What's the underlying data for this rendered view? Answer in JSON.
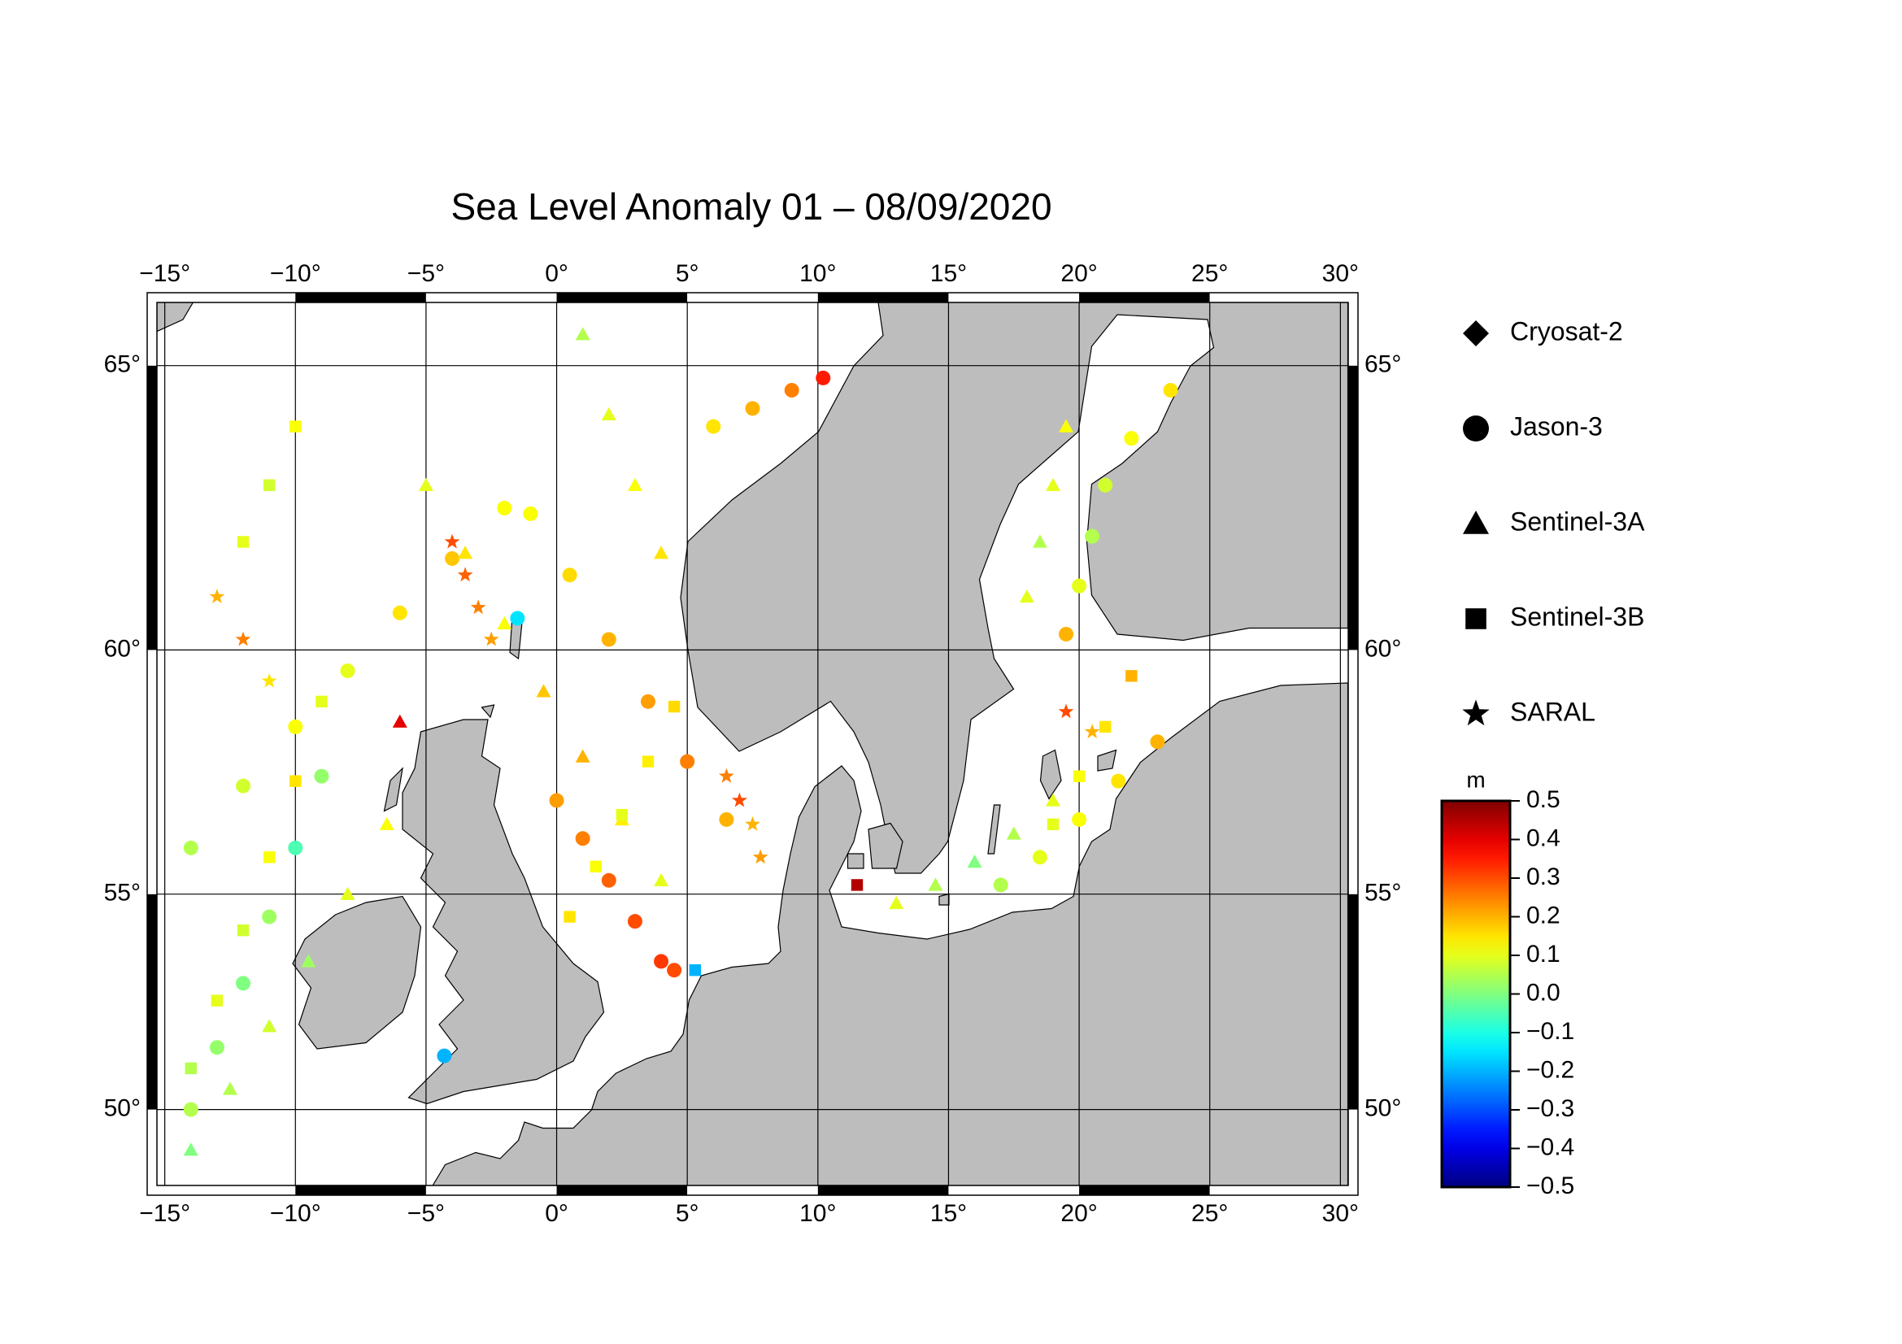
{
  "chart_data": {
    "type": "map",
    "title": "Sea Level Anomaly 01 – 08/09/2020",
    "xlim": [
      -15.3,
      30.3
    ],
    "ylim": [
      48.1,
      66
    ],
    "projection": "mercator",
    "grid": true,
    "xticks": [
      {
        "value": -15,
        "label": "−15°"
      },
      {
        "value": -10,
        "label": "−10°"
      },
      {
        "value": -5,
        "label": "−5°"
      },
      {
        "value": 0,
        "label": "0°"
      },
      {
        "value": 5,
        "label": "5°"
      },
      {
        "value": 10,
        "label": "10°"
      },
      {
        "value": 15,
        "label": "15°"
      },
      {
        "value": 20,
        "label": "20°"
      },
      {
        "value": 25,
        "label": "25°"
      },
      {
        "value": 30,
        "label": "30°"
      }
    ],
    "yticks": [
      {
        "value": 50,
        "label": "50°"
      },
      {
        "value": 55,
        "label": "55°"
      },
      {
        "value": 60,
        "label": "60°"
      },
      {
        "value": 65,
        "label": "65°"
      }
    ],
    "colormap": "jet",
    "colorbar": {
      "label": "m",
      "lim": [
        -0.5,
        0.5
      ],
      "ticks": [
        {
          "value": -0.5,
          "label": "−0.5"
        },
        {
          "value": -0.4,
          "label": "−0.4"
        },
        {
          "value": -0.3,
          "label": "−0.3"
        },
        {
          "value": -0.2,
          "label": "−0.2"
        },
        {
          "value": -0.1,
          "label": "−0.1"
        },
        {
          "value": 0,
          "label": "0.0"
        },
        0.1,
        0.2,
        0.3,
        0.4,
        0.5
      ]
    },
    "series": [
      {
        "name": "Cryosat-2",
        "marker": "diamond",
        "x": [],
        "y": [],
        "values": []
      },
      {
        "name": "Jason-3",
        "marker": "circle",
        "x": [
          -14,
          -12,
          -10,
          -8,
          -6,
          -4,
          -2,
          -1,
          0.5,
          2,
          3.5,
          5,
          6.5,
          0,
          1,
          2,
          3,
          4,
          17,
          18.5,
          20,
          21.5,
          23,
          19.5,
          20,
          20.5,
          21,
          22,
          23.5,
          6,
          7.5,
          9,
          10.2,
          -14,
          -13,
          -12,
          -11,
          -10,
          -9,
          -4.3,
          -1.5,
          4.5
        ],
        "y": [
          56,
          57.3,
          58.5,
          59.6,
          60.7,
          61.7,
          62.6,
          62.5,
          61.4,
          60.2,
          59,
          57.8,
          56.6,
          57,
          56.2,
          55.3,
          54.4,
          53.5,
          55.2,
          55.8,
          56.6,
          57.4,
          58.2,
          60.3,
          61.2,
          62.1,
          63,
          63.8,
          64.6,
          64,
          64.3,
          64.6,
          64.8,
          50,
          51.5,
          53,
          54.5,
          56,
          57.5,
          51.3,
          60.6,
          53.3
        ],
        "values": [
          0.05,
          0.08,
          0.12,
          0.1,
          0.15,
          0.18,
          0.12,
          0.12,
          0.16,
          0.2,
          0.22,
          0.25,
          0.2,
          0.22,
          0.25,
          0.28,
          0.3,
          0.32,
          0.05,
          0.1,
          0.12,
          0.15,
          0.2,
          0.2,
          0.1,
          0.05,
          0.08,
          0.12,
          0.15,
          0.15,
          0.2,
          0.25,
          0.35,
          0.05,
          0.02,
          0,
          0.03,
          -0.05,
          0.02,
          -0.2,
          -0.15,
          0.3
        ]
      },
      {
        "name": "Sentinel-3A",
        "marker": "triangle",
        "x": [
          -5,
          -3.5,
          -2,
          -0.5,
          1,
          2.5,
          4,
          -14,
          -12.5,
          -11,
          -9.5,
          -8,
          -6.5,
          1,
          2,
          3,
          4,
          18,
          18.5,
          19,
          19.5,
          13,
          14.5,
          16,
          17.5,
          19,
          -6
        ],
        "y": [
          63,
          61.8,
          60.5,
          59.2,
          57.9,
          56.6,
          55.3,
          49,
          50.5,
          52,
          53.5,
          55,
          56.5,
          65.5,
          64.2,
          63,
          61.8,
          61,
          62,
          63,
          64,
          54.8,
          55.2,
          55.7,
          56.3,
          57,
          58.6
        ],
        "values": [
          0.1,
          0.15,
          0.12,
          0.18,
          0.2,
          0.14,
          0.1,
          0,
          0.05,
          0.08,
          0.03,
          0.1,
          0.12,
          0.05,
          0.1,
          0.12,
          0.15,
          0.1,
          0.05,
          0.1,
          0.12,
          0.1,
          0.05,
          0,
          0.05,
          0.1,
          0.4
        ]
      },
      {
        "name": "Sentinel-3B",
        "marker": "square",
        "x": [
          -14,
          -13,
          -12,
          -11,
          -10,
          -9,
          0.5,
          1.5,
          2.5,
          3.5,
          4.5,
          19,
          20,
          21,
          22,
          -12,
          -11,
          -10,
          11.5,
          5.3
        ],
        "y": [
          51,
          52.6,
          54.2,
          55.8,
          57.4,
          59,
          54.5,
          55.6,
          56.7,
          57.8,
          58.9,
          56.5,
          57.5,
          58.5,
          59.5,
          62,
          63,
          64,
          55.2,
          53.3
        ],
        "values": [
          0.05,
          0.1,
          0.08,
          0.12,
          0.15,
          0.1,
          0.15,
          0.12,
          0.1,
          0.14,
          0.16,
          0.1,
          0.12,
          0.15,
          0.2,
          0.1,
          0.08,
          0.12,
          0.45,
          -0.2
        ]
      },
      {
        "name": "SARAL",
        "marker": "star",
        "x": [
          -4,
          -3.5,
          -3,
          -2.5,
          6.5,
          7,
          7.5,
          7.8,
          -13,
          -12,
          -11,
          19.5,
          20.5
        ],
        "y": [
          62,
          61.4,
          60.8,
          60.2,
          57.5,
          57,
          56.5,
          55.8,
          61,
          60.2,
          59.4,
          58.8,
          58.4
        ],
        "values": [
          0.3,
          0.28,
          0.25,
          0.22,
          0.25,
          0.3,
          0.2,
          0.22,
          0.2,
          0.25,
          0.15,
          0.3,
          0.2
        ]
      }
    ]
  }
}
